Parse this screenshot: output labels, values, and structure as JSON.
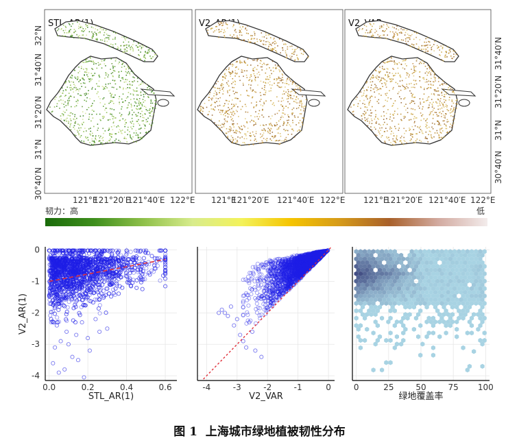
{
  "maps": {
    "panels": [
      {
        "title": "STL_AR(1)",
        "palette": "green"
      },
      {
        "title": "V2_AR(1)",
        "palette": "gold"
      },
      {
        "title": "V2_VAR",
        "palette": "gold"
      }
    ],
    "lon_ticks": [
      "121°E",
      "121°20′E",
      "121°40′E",
      "122°E"
    ],
    "lat_ticks": [
      "32°N",
      "31°40′N",
      "31°20′N",
      "31°N",
      "30°40′N"
    ]
  },
  "colorbar": {
    "label_left": "韧力：高",
    "label_right": "低",
    "colors": [
      "#1a6b0a",
      "#3f8f1d",
      "#8fc04a",
      "#d8ec8c",
      "#f3f25a",
      "#f5c400",
      "#d59a1a",
      "#a8602a",
      "#d2aaa0",
      "#f3ecec"
    ]
  },
  "chart_data": [
    {
      "type": "scatter",
      "xlabel": "STL_AR(1)",
      "ylabel": "V2_AR(1)",
      "xlim": [
        -0.02,
        0.66
      ],
      "ylim": [
        -4.15,
        0.1
      ],
      "xticks": [
        "0.0",
        "0.2",
        "0.4",
        "0.6"
      ],
      "yticks": [
        "0",
        "-1",
        "-2",
        "-3",
        "-4"
      ],
      "trend_line": {
        "x": [
          0.0,
          0.6
        ],
        "y": [
          -1.0,
          -0.3
        ],
        "color": "#e0303a"
      },
      "point_color": "#1f1fe6",
      "outliers": {
        "x": [
          0.02,
          0.05,
          0.08,
          0.12,
          0.15,
          0.18,
          0.21,
          0.03,
          0.06,
          0.1,
          0.14,
          0.2,
          0.26,
          0.3,
          0.04,
          0.09,
          0.17,
          0.24
        ],
        "y": [
          -3.6,
          -3.9,
          -3.8,
          -3.4,
          -3.5,
          -4.05,
          -3.2,
          -3.1,
          -2.9,
          -3.0,
          -2.7,
          -2.8,
          -2.6,
          -2.5,
          -2.4,
          -2.6,
          -2.3,
          -2.2
        ]
      }
    },
    {
      "type": "scatter",
      "xlabel": "V2_VAR",
      "ylabel": "",
      "xlim": [
        -4.3,
        0.2
      ],
      "ylim": [
        -4.15,
        0.1
      ],
      "xticks": [
        "-4",
        "-3",
        "-2",
        "-1",
        "0"
      ],
      "yticks": [],
      "identity_line": {
        "x": [
          -4.2,
          0.2
        ],
        "y": [
          -4.2,
          0.2
        ],
        "color": "#e0303a"
      },
      "point_color": "#1f1fe6",
      "outliers": {
        "x": [
          -3.5,
          -3.3,
          -3.1,
          -2.9,
          -3.4,
          -2.8,
          -3.2,
          -2.5,
          -2.7,
          -3.0,
          -2.4,
          -2.6,
          -3.6,
          -2.2
        ],
        "y": [
          -1.9,
          -2.1,
          -2.4,
          -2.7,
          -2.0,
          -2.9,
          -1.8,
          -2.6,
          -3.1,
          -2.2,
          -3.2,
          -2.3,
          -2.0,
          -3.4
        ]
      }
    },
    {
      "type": "heatmap",
      "subtype": "hexbin",
      "xlabel": "绿地覆盖率",
      "ylabel": "",
      "xlim": [
        -3,
        103
      ],
      "ylim": [
        -4.15,
        0.1
      ],
      "xticks": [
        "0",
        "25",
        "50",
        "75",
        "100"
      ],
      "yticks": [],
      "colors": {
        "low": "#a8d3e3",
        "high": "#2b2f6e"
      }
    }
  ],
  "caption": {
    "figure_no": "图 1",
    "text": "上海城市绿地植被韧性分布"
  }
}
